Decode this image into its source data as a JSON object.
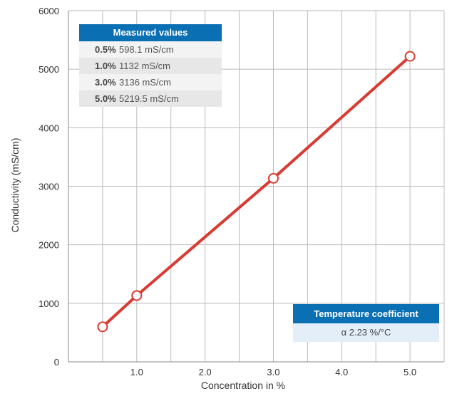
{
  "chart_data": {
    "type": "line",
    "xlabel": "Concentration in %",
    "ylabel": "Conductivity (mS/cm)",
    "xlim": [
      0,
      5.5
    ],
    "ylim": [
      0,
      6000
    ],
    "x_ticks": [
      1.0,
      2.0,
      3.0,
      4.0,
      5.0
    ],
    "x_tick_labels": [
      "1.0",
      "2.0",
      "3.0",
      "4.0",
      "5.0"
    ],
    "y_ticks": [
      0,
      1000,
      2000,
      3000,
      4000,
      5000,
      6000
    ],
    "y_tick_labels": [
      "0",
      "1000",
      "2000",
      "3000",
      "4000",
      "5000",
      "6000"
    ],
    "x_minor_gridlines": [
      0.5,
      1.5,
      2.5,
      3.5,
      4.5
    ],
    "grid": true,
    "series": [
      {
        "x": [
          0.5,
          1.0,
          3.0,
          5.0
        ],
        "y": [
          598.1,
          1132,
          3136,
          5219.5
        ],
        "color": "#d93a32"
      }
    ]
  },
  "measured_table": {
    "title": "Measured values",
    "rows": [
      {
        "conc": "0.5%",
        "value": "598.1 mS/cm"
      },
      {
        "conc": "1.0%",
        "value": "1132 mS/cm"
      },
      {
        "conc": "3.0%",
        "value": "3136 mS/cm"
      },
      {
        "conc": "5.0%",
        "value": "5219.5 mS/cm"
      }
    ]
  },
  "temperature_coefficient": {
    "title": "Temperature coefficient",
    "value": "α 2.23 %/°C"
  },
  "colors": {
    "accent_blue": "#0b6fb3",
    "line_red": "#d93a32",
    "grid": "#bbbbbb"
  }
}
